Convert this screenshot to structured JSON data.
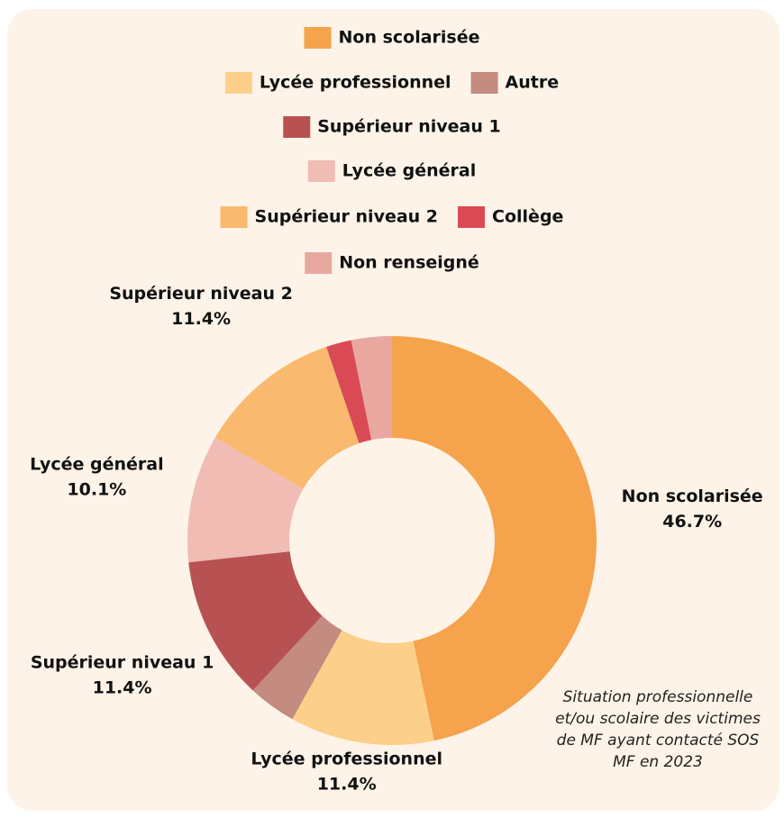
{
  "chart_data": {
    "type": "donut",
    "categories": [
      "Non scolarisée",
      "Lycée professionnel",
      "Autre",
      "Supérieur niveau 1",
      "Lycée général",
      "Supérieur niveau 2",
      "Collège",
      "Non renseigné"
    ],
    "values": [
      46.7,
      11.4,
      3.8,
      11.4,
      10.1,
      11.4,
      2.0,
      3.2
    ],
    "value_labels": [
      "46.7%",
      "11.4%",
      null,
      "11.4%",
      "10.1%",
      "11.4%",
      null,
      null
    ],
    "colors": [
      "#f5a34c",
      "#fcd08a",
      "#c48b80",
      "#b85252",
      "#f0bcb4",
      "#f9b96e",
      "#d94a55",
      "#e8a8a0"
    ],
    "annotation": "Situation professionnelle et/ou scolaire des victimes de MF ayant contacté SOS MF en 2023",
    "legend": "top"
  }
}
